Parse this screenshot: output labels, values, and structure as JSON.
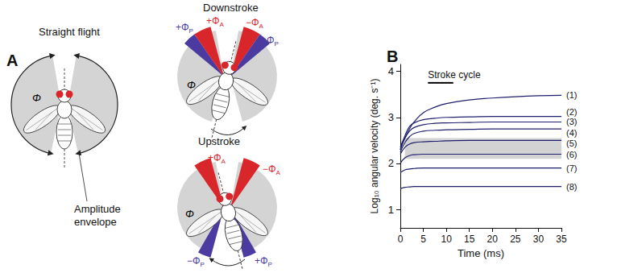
{
  "diagram": {
    "panel_label": "A",
    "straight_flight": {
      "title": "Straight flight",
      "phi": "Φ",
      "callout": [
        "Amplitude",
        "envelope"
      ]
    },
    "downstroke": {
      "title": "Downstroke",
      "phi": "Φ",
      "labels": [
        {
          "main": "+Φ",
          "sub": "P",
          "color": "#4b3aa0"
        },
        {
          "main": "+Φ",
          "sub": "A",
          "color": "#d8262b"
        },
        {
          "main": "−Φ",
          "sub": "A",
          "color": "#d8262b"
        },
        {
          "main": "−Φ",
          "sub": "P",
          "color": "#4b3aa0"
        }
      ]
    },
    "upstroke": {
      "title": "Upstroke",
      "phi": "Φ",
      "labels": [
        {
          "main": "+Φ",
          "sub": "A",
          "color": "#d8262b"
        },
        {
          "main": "−Φ",
          "sub": "A",
          "color": "#d8262b"
        },
        {
          "main": "−Φ",
          "sub": "P",
          "color": "#4b3aa0"
        },
        {
          "main": "+Φ",
          "sub": "P",
          "color": "#4b3aa0"
        }
      ]
    }
  },
  "chart_data": {
    "type": "line",
    "panel_label": "B",
    "xlabel": "Time (ms)",
    "ylabel": "Log₁₀ angular velocity (deg. s⁻¹)",
    "xlim": [
      0,
      35
    ],
    "xticks": [
      0,
      5,
      10,
      15,
      20,
      25,
      30,
      35
    ],
    "ylim": [
      0.6,
      4.15
    ],
    "yticks": [
      1,
      2,
      3,
      4
    ],
    "grid": false,
    "x": [
      0,
      1,
      2,
      3,
      5,
      7.5,
      10,
      15,
      20,
      25,
      30,
      35
    ],
    "series": [
      {
        "name": "(1)",
        "color": "#1f1f6e",
        "values": [
          2.3,
          2.55,
          2.75,
          2.9,
          3.1,
          3.22,
          3.3,
          3.38,
          3.42,
          3.45,
          3.47,
          3.48
        ]
      },
      {
        "name": "(2)",
        "color": "#1f1f6e",
        "values": [
          2.35,
          2.6,
          2.8,
          2.88,
          2.95,
          2.98,
          3.0,
          3.01,
          3.02,
          3.02,
          3.02,
          3.02
        ]
      },
      {
        "name": "(3)",
        "color": "#1f1f6e",
        "values": [
          2.3,
          2.55,
          2.7,
          2.78,
          2.84,
          2.87,
          2.88,
          2.89,
          2.9,
          2.9,
          2.9,
          2.9
        ]
      },
      {
        "name": "(4)",
        "color": "#1f1f6e",
        "values": [
          2.25,
          2.45,
          2.58,
          2.65,
          2.7,
          2.72,
          2.73,
          2.74,
          2.75,
          2.75,
          2.75,
          2.75
        ]
      },
      {
        "name": "(5)",
        "color": "#1f1f6e",
        "values": [
          2.2,
          2.35,
          2.42,
          2.45,
          2.47,
          2.48,
          2.49,
          2.5,
          2.5,
          2.5,
          2.5,
          2.5
        ]
      },
      {
        "name": "(6)",
        "color": "#1f1f6e",
        "values": [
          2.0,
          2.12,
          2.17,
          2.19,
          2.2,
          2.2,
          2.2,
          2.2,
          2.2,
          2.2,
          2.2,
          2.2
        ]
      },
      {
        "name": "(7)",
        "color": "#1f1f6e",
        "values": [
          1.8,
          1.86,
          1.88,
          1.89,
          1.9,
          1.9,
          1.9,
          1.9,
          1.9,
          1.9,
          1.9,
          1.9
        ]
      },
      {
        "name": "(8)",
        "color": "#1f1f6e",
        "values": [
          1.45,
          1.48,
          1.49,
          1.5,
          1.5,
          1.5,
          1.5,
          1.5,
          1.5,
          1.5,
          1.5,
          1.5
        ]
      }
    ],
    "band": {
      "x": [
        1,
        35
      ],
      "y": [
        2.1,
        2.55
      ],
      "color": "#d3d3d3"
    },
    "scale_bar": {
      "label": "Stroke cycle",
      "x": [
        6,
        11.5
      ],
      "y": 3.75,
      "color": "#000000"
    }
  }
}
